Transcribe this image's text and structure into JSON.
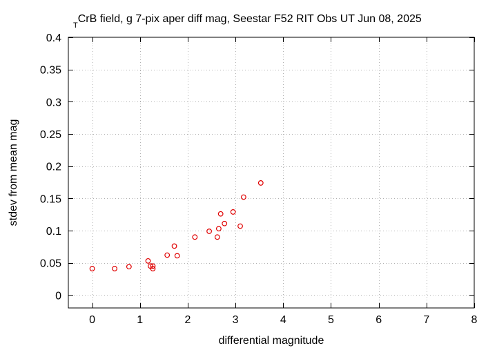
{
  "chart_data": {
    "type": "scatter",
    "title_prefix": "T",
    "title": "CrB field, g 7-pix aper diff mag,  Seestar F52 RIT Obs UT Jun 08, 2025",
    "xlabel": "differential magnitude",
    "ylabel": "stdev from mean mag",
    "xlim": [
      -0.5,
      8
    ],
    "ylim": [
      -0.02,
      0.4
    ],
    "xticks": [
      0,
      1,
      2,
      3,
      4,
      5,
      6,
      7,
      8
    ],
    "yticks": [
      0,
      0.05,
      0.1,
      0.15,
      0.2,
      0.25,
      0.3,
      0.35,
      0.4
    ],
    "xtick_labels": [
      "0",
      "1",
      "2",
      "3",
      "4",
      "5",
      "6",
      "7",
      "8"
    ],
    "ytick_labels": [
      "0",
      "0.05",
      "0.1",
      "0.15",
      "0.2",
      "0.25",
      "0.3",
      "0.35",
      "0.4"
    ],
    "grid": true,
    "legend": "none",
    "marker": "open-circle",
    "point_color": "#e00000",
    "grid_color": "#b0b0b0",
    "series": [
      {
        "points": [
          {
            "x": 0.0,
            "y": 0.041
          },
          {
            "x": 0.47,
            "y": 0.041
          },
          {
            "x": 0.77,
            "y": 0.044
          },
          {
            "x": 1.17,
            "y": 0.053
          },
          {
            "x": 1.22,
            "y": 0.045
          },
          {
            "x": 1.27,
            "y": 0.041
          },
          {
            "x": 1.27,
            "y": 0.045
          },
          {
            "x": 1.57,
            "y": 0.062
          },
          {
            "x": 1.72,
            "y": 0.076
          },
          {
            "x": 1.78,
            "y": 0.061
          },
          {
            "x": 2.15,
            "y": 0.09
          },
          {
            "x": 2.45,
            "y": 0.099
          },
          {
            "x": 2.62,
            "y": 0.09
          },
          {
            "x": 2.65,
            "y": 0.103
          },
          {
            "x": 2.69,
            "y": 0.126
          },
          {
            "x": 2.77,
            "y": 0.111
          },
          {
            "x": 2.95,
            "y": 0.129
          },
          {
            "x": 3.1,
            "y": 0.107
          },
          {
            "x": 3.17,
            "y": 0.152
          },
          {
            "x": 3.53,
            "y": 0.174
          }
        ]
      }
    ]
  }
}
